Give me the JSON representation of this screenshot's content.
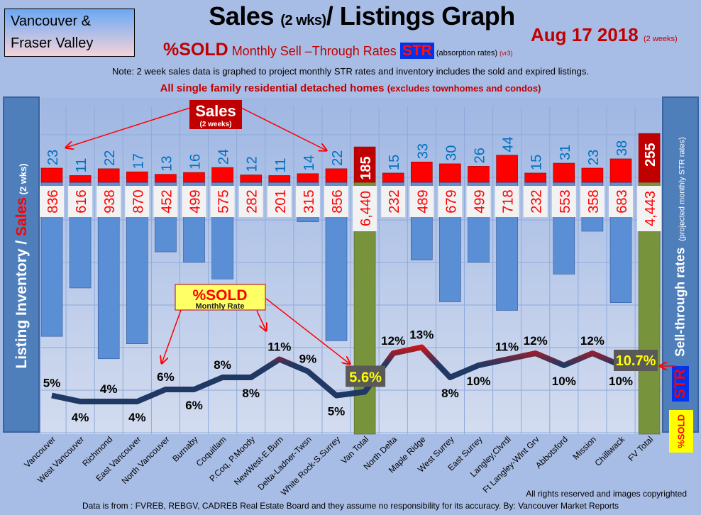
{
  "header": {
    "region_line1": "Vancouver &",
    "region_line2": "Fraser Valley",
    "title_main": "Sales ",
    "title_small": "(2 wks)",
    "title_rest": "/ Listings Graph",
    "date": "Aug 17 2018 ",
    "date_small": "(2 weeks)",
    "subtitle_sold": "%SOLD",
    "subtitle_rates": " Monthly Sell –Through Rates ",
    "subtitle_str": "STR",
    "subtitle_abs": "  (absorption rates) ",
    "subtitle_ver": "(vr3)",
    "note": "Note: 2 week sales data is graphed to project monthly STR rates and inventory includes the sold and expired listings.",
    "note2": "All single family residential detached homes ",
    "note2_small": "(excludes townhomes and condos)"
  },
  "left_axis": {
    "label_part1": "Listing Inventory / ",
    "label_sales": "Sales",
    "label_part2": " (2 wks)"
  },
  "right_axis": {
    "label": "Sell-through rates",
    "label_small": "(projected monthly STR rates)",
    "str": "STR",
    "sold": "%SOLD"
  },
  "callouts": {
    "sales_title": "Sales",
    "sales_sub": "(2 weeks)",
    "sold_title": "%SOLD",
    "sold_sub": "Monthly Rate"
  },
  "footer": {
    "rights": "All rights reserved and  images copyrighted",
    "source": "Data is from : FVREB, REBGV, CADREB Real Estate Board and they assume no responsibility for its accuracy. By: Vancouver Market Reports"
  },
  "colors": {
    "sales": "#ff0000",
    "total_sales": "#c00000",
    "listings": "#5a8fd6",
    "total_listings": "#77933c",
    "line_low": "#1f3864",
    "line_high": "#e01010",
    "str_label": "#ffff00"
  },
  "chart_data": {
    "type": "bar+line",
    "categories": [
      "Vancouver",
      "West Vancouver",
      "Richmond",
      "East Vancouver",
      "North Vancouver",
      "Burnaby",
      "Coquitlam",
      "P.Coq, P.Moody",
      "NewWest-E.Burn",
      "Delta-Ladner-Twsn",
      "White Rock-S.Surrey",
      "Van Total",
      "North Delta",
      "Maple Ridge",
      "West Surrey",
      "East Surrey",
      "Langley,Clvrdl",
      "Ft Langley-Wlnt Grv",
      "Abbotsford",
      "Mission",
      "Chilliwack",
      "FV Total"
    ],
    "totals": [
      false,
      false,
      false,
      false,
      false,
      false,
      false,
      false,
      false,
      false,
      false,
      true,
      false,
      false,
      false,
      false,
      false,
      false,
      false,
      false,
      false,
      true
    ],
    "series": [
      {
        "name": "Sales (2 weeks)",
        "values": [
          23,
          11,
          22,
          17,
          13,
          16,
          24,
          12,
          11,
          14,
          22,
          185,
          15,
          33,
          30,
          26,
          44,
          15,
          31,
          23,
          38,
          255
        ],
        "labels": [
          "23",
          "11",
          "22",
          "17",
          "13",
          "16",
          "24",
          "12",
          "11",
          "14",
          "22",
          "185",
          "15",
          "33",
          "30",
          "26",
          "44",
          "15",
          "31",
          "23",
          "38",
          "255"
        ]
      },
      {
        "name": "Listing Inventory",
        "values": [
          836,
          616,
          938,
          870,
          452,
          499,
          575,
          282,
          201,
          315,
          856,
          6440,
          232,
          489,
          679,
          499,
          718,
          232,
          553,
          358,
          683,
          4443
        ],
        "labels": [
          "836",
          "616",
          "938",
          "870",
          "452",
          "499",
          "575",
          "282",
          "201",
          "315",
          "856",
          "6,440",
          "232",
          "489",
          "679",
          "499",
          "718",
          "232",
          "553",
          "358",
          "683",
          "4,443"
        ]
      },
      {
        "name": "%SOLD Monthly Rate",
        "values": [
          5,
          4,
          4,
          4,
          6,
          6,
          8,
          8,
          11,
          9,
          5,
          5.6,
          12,
          13,
          8,
          10,
          11,
          12,
          10,
          12,
          10,
          10.7
        ],
        "labels": [
          "5%",
          "4%",
          "4%",
          "4%",
          "6%",
          "6%",
          "8%",
          "8%",
          "11%",
          "9%",
          "5%",
          "5.6%",
          "12%",
          "13%",
          "8%",
          "10%",
          "11%",
          "12%",
          "10%",
          "12%",
          "10%",
          "10.7%"
        ]
      }
    ],
    "grid": true
  }
}
